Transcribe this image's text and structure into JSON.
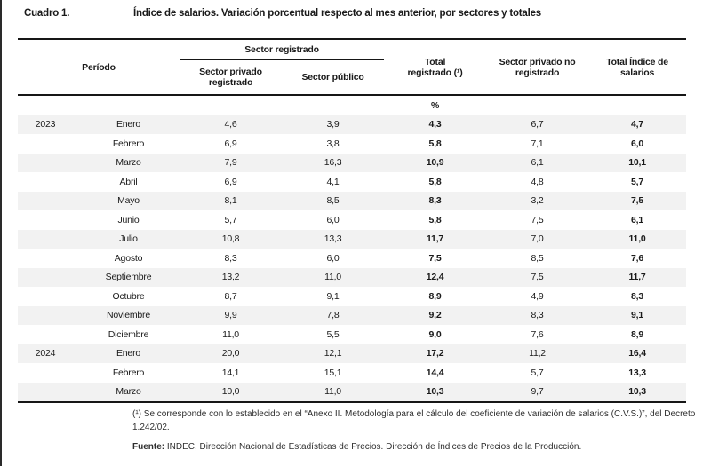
{
  "page": {
    "label": "Cuadro 1.",
    "title": "Índice de salarios. Variación porcentual respecto al mes anterior, por sectores y totales"
  },
  "table": {
    "headers": {
      "period": "Período",
      "group_registered": "Sector registrado",
      "col_private_registered": "Sector privado\nregistrado",
      "col_public": "Sector público",
      "col_total_registered": "Total\nregistrado (¹)",
      "col_private_unregistered": "Sector privado no\nregistrado",
      "col_total_index": "Total Índice de\nsalarios"
    },
    "unit": "%",
    "rows": [
      {
        "year": "2023",
        "month": "Enero",
        "values": [
          "4,6",
          "3,9",
          "4,3",
          "6,7",
          "4,7"
        ]
      },
      {
        "year": "",
        "month": "Febrero",
        "values": [
          "6,9",
          "3,8",
          "5,8",
          "7,1",
          "6,0"
        ]
      },
      {
        "year": "",
        "month": "Marzo",
        "values": [
          "7,9",
          "16,3",
          "10,9",
          "6,1",
          "10,1"
        ]
      },
      {
        "year": "",
        "month": "Abril",
        "values": [
          "6,9",
          "4,1",
          "5,8",
          "4,8",
          "5,7"
        ]
      },
      {
        "year": "",
        "month": "Mayo",
        "values": [
          "8,1",
          "8,5",
          "8,3",
          "3,2",
          "7,5"
        ]
      },
      {
        "year": "",
        "month": "Junio",
        "values": [
          "5,7",
          "6,0",
          "5,8",
          "7,5",
          "6,1"
        ]
      },
      {
        "year": "",
        "month": "Julio",
        "values": [
          "10,8",
          "13,3",
          "11,7",
          "7,0",
          "11,0"
        ]
      },
      {
        "year": "",
        "month": "Agosto",
        "values": [
          "8,3",
          "6,0",
          "7,5",
          "8,5",
          "7,6"
        ]
      },
      {
        "year": "",
        "month": "Septiembre",
        "values": [
          "13,2",
          "11,0",
          "12,4",
          "7,5",
          "11,7"
        ]
      },
      {
        "year": "",
        "month": "Octubre",
        "values": [
          "8,7",
          "9,1",
          "8,9",
          "4,9",
          "8,3"
        ]
      },
      {
        "year": "",
        "month": "Noviembre",
        "values": [
          "9,9",
          "7,8",
          "9,2",
          "8,3",
          "9,1"
        ]
      },
      {
        "year": "",
        "month": "Diciembre",
        "values": [
          "11,0",
          "5,5",
          "9,0",
          "7,6",
          "8,9"
        ]
      },
      {
        "year": "2024",
        "month": "Enero",
        "values": [
          "20,0",
          "12,1",
          "17,2",
          "11,2",
          "16,4"
        ]
      },
      {
        "year": "",
        "month": "Febrero",
        "values": [
          "14,1",
          "15,1",
          "14,4",
          "5,7",
          "13,3"
        ]
      },
      {
        "year": "",
        "month": "Marzo",
        "values": [
          "10,0",
          "11,0",
          "10,3",
          "9,7",
          "10,3"
        ]
      }
    ]
  },
  "footnotes": {
    "note1": "(¹) Se corresponde con lo establecido en el “Anexo II. Metodología para el cálculo del coeficiente de variación de salarios (C.V.S.)”, del Decreto 1.242/02.",
    "source_label": "Fuente:",
    "source_text": " INDEC, Dirección Nacional de Estadísticas de Precios. Dirección de Índices de Precios de la Producción."
  },
  "colors": {
    "rule": "#161616",
    "stripe": "#f2f2f2",
    "text": "#1a1a1a"
  }
}
